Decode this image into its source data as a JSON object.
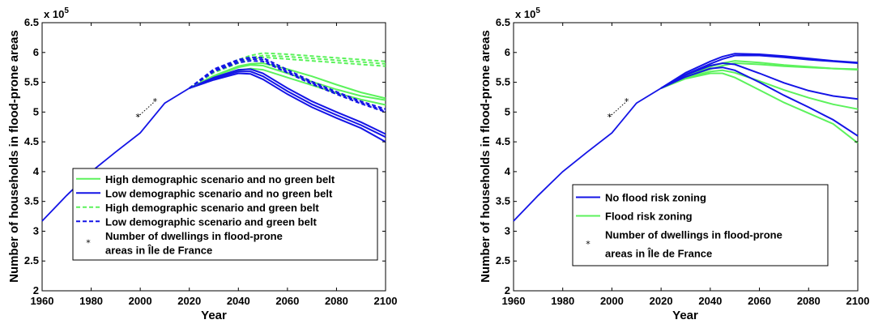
{
  "chart_data": [
    {
      "type": "line",
      "ylabel": "Number of households in flood-prone areas",
      "xlabel": "Year",
      "xlim": [
        1960,
        2100
      ],
      "ylim": [
        200000,
        650000
      ],
      "xticks": [
        1960,
        1980,
        2000,
        2020,
        2040,
        2060,
        2080,
        2100
      ],
      "yticks": [
        200000,
        250000,
        300000,
        350000,
        400000,
        450000,
        500000,
        550000,
        600000,
        650000
      ],
      "ytick_labels": [
        "2",
        "2.5",
        "3",
        "3.5",
        "4",
        "4.5",
        "5",
        "5.5",
        "6",
        "6.5"
      ],
      "y_multiplier": "x 10",
      "y_multiplier_exp": "5",
      "grid": false,
      "legend_position": "bottom-center",
      "legend": [
        {
          "label": "High demographic scenario and no green belt",
          "color": "#5cf25c",
          "style": "solid"
        },
        {
          "label": "Low demographic scenario and no green belt",
          "color": "#1414e6",
          "style": "solid"
        },
        {
          "label": "High demographic scenario and green belt",
          "color": "#5cf25c",
          "style": "dashed"
        },
        {
          "label": "Low demographic scenario and green belt",
          "color": "#1414e6",
          "style": "dashed"
        },
        {
          "label": "Number of dwellings in flood-prone\nareas in Île de France",
          "color": "#000000",
          "style": "star"
        }
      ],
      "history": {
        "x": [
          1960,
          1970,
          1980,
          1990,
          2000,
          2010,
          2020
        ],
        "y": [
          317000,
          360000,
          400000,
          433000,
          465000,
          515000,
          540000
        ]
      },
      "series": [
        {
          "style": "solid",
          "color": "#5cf25c",
          "x": [
            2020,
            2030,
            2040,
            2045,
            2050,
            2060,
            2070,
            2080,
            2090,
            2100
          ],
          "y": [
            540000,
            560000,
            575000,
            579000,
            578000,
            565000,
            551000,
            538000,
            527000,
            520000
          ]
        },
        {
          "style": "solid",
          "color": "#5cf25c",
          "x": [
            2020,
            2030,
            2040,
            2045,
            2050,
            2060,
            2070,
            2080,
            2090,
            2100
          ],
          "y": [
            540000,
            558000,
            570000,
            573000,
            571000,
            558000,
            545000,
            532000,
            521000,
            512000
          ]
        },
        {
          "style": "solid",
          "color": "#5cf25c",
          "x": [
            2020,
            2030,
            2040,
            2045,
            2050,
            2060,
            2070,
            2080,
            2090,
            2100
          ],
          "y": [
            540000,
            561000,
            577000,
            581000,
            582000,
            572000,
            560000,
            546000,
            533000,
            523000
          ]
        },
        {
          "style": "solid",
          "color": "#1414e6",
          "x": [
            2020,
            2030,
            2040,
            2045,
            2050,
            2060,
            2070,
            2080,
            2090,
            2100
          ],
          "y": [
            540000,
            558000,
            571000,
            572000,
            565000,
            540000,
            518000,
            500000,
            483000,
            463000
          ]
        },
        {
          "style": "solid",
          "color": "#1414e6",
          "x": [
            2020,
            2030,
            2040,
            2045,
            2050,
            2060,
            2070,
            2080,
            2090,
            2100
          ],
          "y": [
            540000,
            556000,
            568000,
            568000,
            560000,
            535000,
            513000,
            495000,
            478000,
            458000
          ]
        },
        {
          "style": "solid",
          "color": "#1414e6",
          "x": [
            2020,
            2030,
            2040,
            2045,
            2050,
            2060,
            2070,
            2080,
            2090,
            2100
          ],
          "y": [
            540000,
            554000,
            565000,
            564000,
            555000,
            530000,
            508000,
            490000,
            473000,
            450000
          ]
        },
        {
          "style": "dashed",
          "color": "#5cf25c",
          "x": [
            2020,
            2030,
            2040,
            2045,
            2050,
            2060,
            2070,
            2080,
            2090,
            2100
          ],
          "y": [
            540000,
            570000,
            588000,
            595000,
            599000,
            597000,
            594000,
            591000,
            588000,
            585000
          ]
        },
        {
          "style": "dashed",
          "color": "#5cf25c",
          "x": [
            2020,
            2030,
            2040,
            2045,
            2050,
            2060,
            2070,
            2080,
            2090,
            2100
          ],
          "y": [
            540000,
            566000,
            582000,
            588000,
            592000,
            589000,
            586000,
            583000,
            580000,
            577000
          ]
        },
        {
          "style": "dashed",
          "color": "#5cf25c",
          "x": [
            2020,
            2030,
            2040,
            2045,
            2050,
            2060,
            2070,
            2080,
            2090,
            2100
          ],
          "y": [
            540000,
            568000,
            585000,
            591000,
            595000,
            593000,
            590000,
            587000,
            584000,
            581000
          ]
        },
        {
          "style": "dashed",
          "color": "#1414e6",
          "x": [
            2020,
            2030,
            2040,
            2045,
            2050,
            2060,
            2070,
            2080,
            2090,
            2100
          ],
          "y": [
            540000,
            572000,
            588000,
            592000,
            591000,
            571000,
            551000,
            534000,
            518000,
            505000
          ]
        },
        {
          "style": "dashed",
          "color": "#1414e6",
          "x": [
            2020,
            2030,
            2040,
            2045,
            2050,
            2060,
            2070,
            2080,
            2090,
            2100
          ],
          "y": [
            540000,
            568000,
            583000,
            586000,
            585000,
            566000,
            547000,
            530000,
            514000,
            500000
          ]
        },
        {
          "style": "dashed",
          "color": "#1414e6",
          "x": [
            2020,
            2030,
            2040,
            2045,
            2050,
            2060,
            2070,
            2080,
            2090,
            2100
          ],
          "y": [
            540000,
            570000,
            586000,
            589000,
            588000,
            568000,
            549000,
            532000,
            516000,
            502000
          ]
        }
      ],
      "observed": {
        "x": [
          1999,
          2006
        ],
        "y": [
          492000,
          518000
        ]
      }
    },
    {
      "type": "line",
      "ylabel": "Number of households in flood-prone areas",
      "xlabel": "Year",
      "xlim": [
        1960,
        2100
      ],
      "ylim": [
        200000,
        650000
      ],
      "xticks": [
        1960,
        1980,
        2000,
        2020,
        2040,
        2060,
        2080,
        2100
      ],
      "yticks": [
        200000,
        250000,
        300000,
        350000,
        400000,
        450000,
        500000,
        550000,
        600000,
        650000
      ],
      "ytick_labels": [
        "2",
        "2.5",
        "3",
        "3.5",
        "4",
        "4.5",
        "5",
        "5.5",
        "6",
        "6.5"
      ],
      "y_multiplier": "x 10",
      "y_multiplier_exp": "5",
      "grid": false,
      "legend_position": "bottom-right",
      "legend": [
        {
          "label": "No flood risk zoning",
          "color": "#1414e6",
          "style": "solid"
        },
        {
          "label": "Flood risk zoning",
          "color": "#5cf25c",
          "style": "solid"
        },
        {
          "label": "Number of dwellings in flood-prone\nareas in Île de France",
          "color": "#000000",
          "style": "star"
        }
      ],
      "history": {
        "x": [
          1960,
          1970,
          1980,
          1990,
          2000,
          2010,
          2020
        ],
        "y": [
          317000,
          360000,
          400000,
          433000,
          465000,
          515000,
          540000
        ]
      },
      "series": [
        {
          "style": "solid",
          "color": "#5cf25c",
          "x": [
            2020,
            2030,
            2040,
            2045,
            2050,
            2060,
            2070,
            2080,
            2090,
            2100
          ],
          "y": [
            540000,
            560000,
            576000,
            582000,
            586000,
            583000,
            579000,
            576000,
            573000,
            571000
          ]
        },
        {
          "style": "solid",
          "color": "#5cf25c",
          "x": [
            2020,
            2030,
            2040,
            2045,
            2050,
            2060,
            2070,
            2080,
            2090,
            2100
          ],
          "y": [
            540000,
            558000,
            572000,
            578000,
            582000,
            580000,
            577000,
            575000,
            573000,
            572000
          ]
        },
        {
          "style": "solid",
          "color": "#5cf25c",
          "x": [
            2020,
            2030,
            2040,
            2045,
            2050,
            2060,
            2070,
            2080,
            2090,
            2100
          ],
          "y": [
            540000,
            557000,
            568000,
            570000,
            566000,
            552000,
            537000,
            524000,
            513000,
            505000
          ]
        },
        {
          "style": "solid",
          "color": "#5cf25c",
          "x": [
            2020,
            2030,
            2040,
            2045,
            2050,
            2060,
            2070,
            2080,
            2090,
            2100
          ],
          "y": [
            540000,
            556000,
            565000,
            565000,
            558000,
            537000,
            516000,
            498000,
            480000,
            448000
          ]
        },
        {
          "style": "solid",
          "color": "#1414e6",
          "x": [
            2020,
            2030,
            2040,
            2045,
            2050,
            2060,
            2070,
            2080,
            2090,
            2100
          ],
          "y": [
            540000,
            566000,
            585000,
            593000,
            598000,
            597000,
            594000,
            590000,
            586000,
            583000
          ]
        },
        {
          "style": "solid",
          "color": "#1414e6",
          "x": [
            2020,
            2030,
            2040,
            2045,
            2050,
            2060,
            2070,
            2080,
            2090,
            2100
          ],
          "y": [
            540000,
            563000,
            581000,
            589000,
            595000,
            595000,
            592000,
            588000,
            585000,
            582000
          ]
        },
        {
          "style": "solid",
          "color": "#1414e6",
          "x": [
            2020,
            2030,
            2040,
            2045,
            2050,
            2060,
            2070,
            2080,
            2090,
            2100
          ],
          "y": [
            540000,
            562000,
            578000,
            582000,
            580000,
            565000,
            549000,
            536000,
            527000,
            522000
          ]
        },
        {
          "style": "solid",
          "color": "#1414e6",
          "x": [
            2020,
            2030,
            2040,
            2045,
            2050,
            2060,
            2070,
            2080,
            2090,
            2100
          ],
          "y": [
            540000,
            559000,
            573000,
            575000,
            570000,
            550000,
            528000,
            508000,
            487000,
            460000
          ]
        }
      ],
      "observed": {
        "x": [
          1999,
          2006
        ],
        "y": [
          492000,
          518000
        ]
      }
    }
  ]
}
